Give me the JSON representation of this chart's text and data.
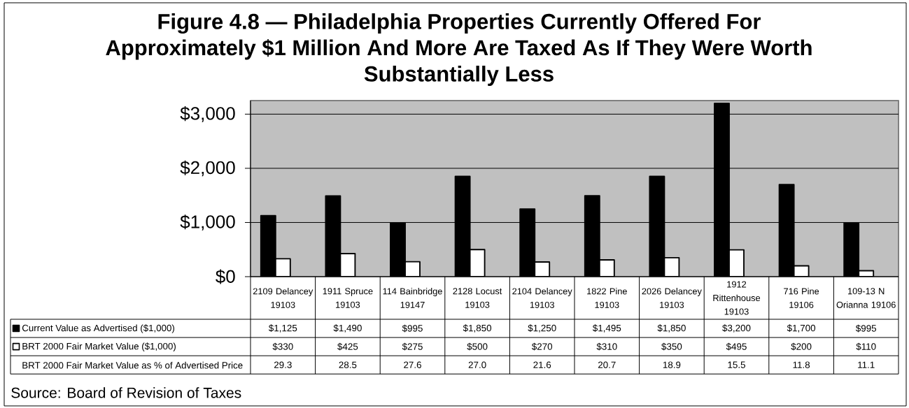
{
  "chart_data": {
    "type": "bar",
    "title": "Figure 4.8 — Philadelphia Properties Currently Offered For Approximately $1 Million And More Are Taxed As If They Were Worth Substantially Less",
    "categories": [
      "2109 Delancey 19103",
      "1911 Spruce 19103",
      "114 Bainbridge 19147",
      "2128 Locust 19103",
      "2104 Delancey 19103",
      "1822 Pine 19103",
      "2026 Delancey 19103",
      "1912 Rittenhouse 19103",
      "716 Pine 19106",
      "109-13 N Orianna 19106"
    ],
    "series": [
      {
        "name": "Current Value as Advertised ($1,000)",
        "color": "#000000",
        "values": [
          1125,
          1490,
          995,
          1850,
          1250,
          1495,
          1850,
          3200,
          1700,
          995
        ],
        "value_labels": [
          "$1,125",
          "$1,490",
          "$995",
          "$1,850",
          "$1,250",
          "$1,495",
          "$1,850",
          "$3,200",
          "$1,700",
          "$995"
        ]
      },
      {
        "name": "BRT 2000 Fair Market Value ($1,000)",
        "color": "#ffffff",
        "values": [
          330,
          425,
          275,
          500,
          270,
          310,
          350,
          495,
          200,
          110
        ],
        "value_labels": [
          "$330",
          "$425",
          "$275",
          "$500",
          "$270",
          "$310",
          "$350",
          "$495",
          "$200",
          "$110"
        ]
      },
      {
        "name": "BRT 2000 Fair Market Value as % of Advertised Price",
        "values": [
          null,
          null,
          null,
          null,
          null,
          null,
          null,
          null,
          null,
          null
        ],
        "value_labels": [
          "29.3",
          "28.5",
          "27.6",
          "27.0",
          "21.6",
          "20.7",
          "18.9",
          "15.5",
          "11.8",
          "11.1"
        ]
      }
    ],
    "ylim": [
      0,
      3250
    ],
    "yticks": [
      {
        "value": 0,
        "label": "$0"
      },
      {
        "value": 1000,
        "label": "$1,000"
      },
      {
        "value": 2000,
        "label": "$2,000"
      },
      {
        "value": 3000,
        "label": "$3,000"
      }
    ],
    "grid": "y",
    "legend": "bottom left",
    "annotations": [
      "Source: Board of Revision of Taxes"
    ]
  }
}
